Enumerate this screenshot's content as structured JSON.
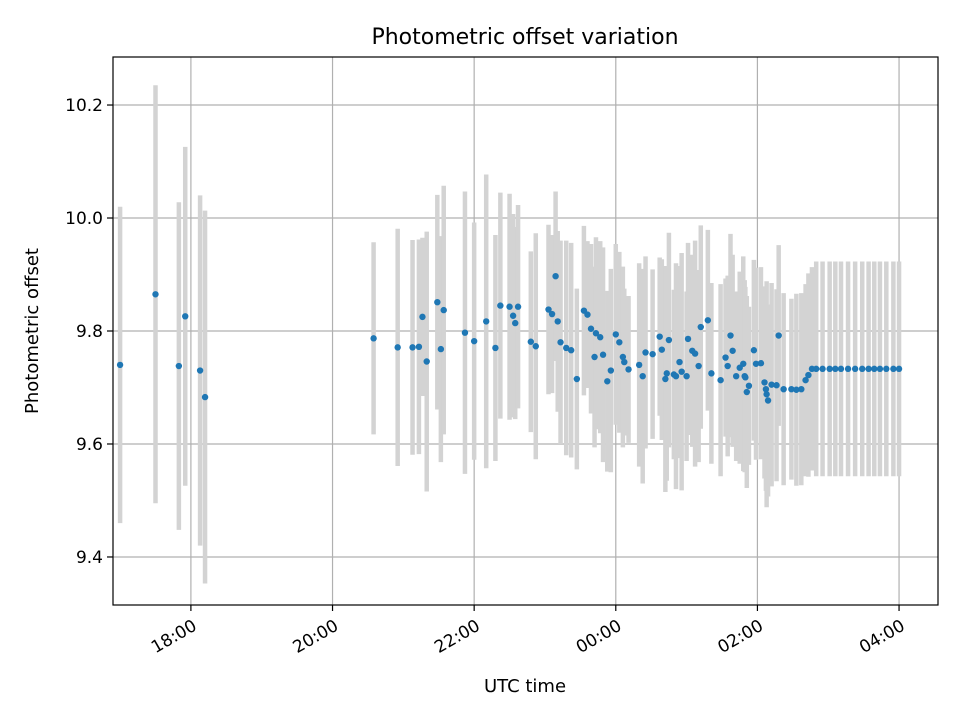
{
  "chart_data": {
    "type": "scatter",
    "title": "Photometric offset variation",
    "xlabel": "UTC time",
    "ylabel": "Photometric offset",
    "ylim": [
      9.315,
      10.285
    ],
    "xlim_hours": [
      16.9,
      28.55
    ],
    "xticks": [
      {
        "h": 18,
        "label": "18:00"
      },
      {
        "h": 20,
        "label": "20:00"
      },
      {
        "h": 22,
        "label": "22:00"
      },
      {
        "h": 24,
        "label": "00:00"
      },
      {
        "h": 26,
        "label": "02:00"
      },
      {
        "h": 28,
        "label": "04:00"
      }
    ],
    "yticks": [
      {
        "v": 9.4,
        "label": "9.4"
      },
      {
        "v": 9.6,
        "label": "9.6"
      },
      {
        "v": 9.8,
        "label": "9.8"
      },
      {
        "v": 10.0,
        "label": "10.0"
      },
      {
        "v": 10.2,
        "label": "10.2"
      }
    ],
    "grid": true,
    "series": [
      {
        "name": "offset",
        "marker_color": "#1f77b4",
        "errorbar_color": "#d3d3d3",
        "points": [
          [
            17.0,
            9.74,
            0.28
          ],
          [
            17.5,
            9.865,
            0.37
          ],
          [
            17.83,
            9.738,
            0.29
          ],
          [
            17.92,
            9.826,
            0.3
          ],
          [
            18.13,
            9.73,
            0.31
          ],
          [
            18.2,
            9.683,
            0.33
          ],
          [
            20.58,
            9.787,
            0.17
          ],
          [
            20.92,
            9.771,
            0.21
          ],
          [
            21.13,
            9.771,
            0.19
          ],
          [
            21.22,
            9.772,
            0.19
          ],
          [
            21.27,
            9.825,
            0.14
          ],
          [
            21.33,
            9.746,
            0.23
          ],
          [
            21.48,
            9.851,
            0.19
          ],
          [
            21.53,
            9.768,
            0.2
          ],
          [
            21.57,
            9.837,
            0.22
          ],
          [
            21.87,
            9.797,
            0.25
          ],
          [
            22.0,
            9.782,
            0.21
          ],
          [
            22.17,
            9.817,
            0.26
          ],
          [
            22.3,
            9.77,
            0.2
          ],
          [
            22.37,
            9.845,
            0.2
          ],
          [
            22.5,
            9.843,
            0.2
          ],
          [
            22.55,
            9.827,
            0.18
          ],
          [
            22.58,
            9.814,
            0.17
          ],
          [
            22.62,
            9.843,
            0.18
          ],
          [
            22.8,
            9.781,
            0.16
          ],
          [
            22.87,
            9.773,
            0.2
          ],
          [
            23.05,
            9.838,
            0.15
          ],
          [
            23.1,
            9.83,
            0.14
          ],
          [
            23.15,
            9.897,
            0.15
          ],
          [
            23.18,
            9.817,
            0.16
          ],
          [
            23.22,
            9.78,
            0.18
          ],
          [
            23.3,
            9.77,
            0.19
          ],
          [
            23.37,
            9.766,
            0.19
          ],
          [
            23.45,
            9.715,
            0.16
          ],
          [
            23.55,
            9.836,
            0.15
          ],
          [
            23.6,
            9.829,
            0.13
          ],
          [
            23.65,
            9.804,
            0.15
          ],
          [
            23.7,
            9.754,
            0.16
          ],
          [
            23.72,
            9.796,
            0.17
          ],
          [
            23.78,
            9.789,
            0.17
          ],
          [
            23.82,
            9.758,
            0.19
          ],
          [
            23.88,
            9.711,
            0.16
          ],
          [
            23.93,
            9.73,
            0.18
          ],
          [
            24.0,
            9.794,
            0.16
          ],
          [
            24.05,
            9.78,
            0.16
          ],
          [
            24.1,
            9.754,
            0.16
          ],
          [
            24.12,
            9.745,
            0.13
          ],
          [
            24.18,
            9.732,
            0.13
          ],
          [
            24.33,
            9.74,
            0.18
          ],
          [
            24.38,
            9.72,
            0.19
          ],
          [
            24.42,
            9.762,
            0.17
          ],
          [
            24.52,
            9.759,
            0.15
          ],
          [
            24.62,
            9.79,
            0.14
          ],
          [
            24.65,
            9.767,
            0.16
          ],
          [
            24.7,
            9.715,
            0.2
          ],
          [
            24.72,
            9.725,
            0.19
          ],
          [
            24.75,
            9.784,
            0.19
          ],
          [
            24.82,
            9.723,
            0.15
          ],
          [
            24.85,
            9.72,
            0.2
          ],
          [
            24.9,
            9.745,
            0.17
          ],
          [
            24.93,
            9.728,
            0.21
          ],
          [
            25.0,
            9.72,
            0.15
          ],
          [
            25.02,
            9.786,
            0.17
          ],
          [
            25.08,
            9.765,
            0.17
          ],
          [
            25.12,
            9.76,
            0.2
          ],
          [
            25.17,
            9.738,
            0.17
          ],
          [
            25.2,
            9.807,
            0.18
          ],
          [
            25.3,
            9.819,
            0.16
          ],
          [
            25.35,
            9.725,
            0.16
          ],
          [
            25.48,
            9.713,
            0.17
          ],
          [
            25.55,
            9.753,
            0.14
          ],
          [
            25.58,
            9.738,
            0.16
          ],
          [
            25.62,
            9.792,
            0.18
          ],
          [
            25.65,
            9.765,
            0.17
          ],
          [
            25.7,
            9.72,
            0.15
          ],
          [
            25.75,
            9.735,
            0.17
          ],
          [
            25.8,
            9.742,
            0.19
          ],
          [
            25.82,
            9.72,
            0.17
          ],
          [
            25.83,
            9.718,
            0.16
          ],
          [
            25.85,
            9.692,
            0.17
          ],
          [
            25.88,
            9.703,
            0.14
          ],
          [
            25.95,
            9.766,
            0.16
          ],
          [
            25.98,
            9.742,
            0.17
          ],
          [
            26.05,
            9.743,
            0.17
          ],
          [
            26.1,
            9.709,
            0.17
          ],
          [
            26.12,
            9.697,
            0.18
          ],
          [
            26.13,
            9.688,
            0.2
          ],
          [
            26.15,
            9.677,
            0.17
          ],
          [
            26.2,
            9.705,
            0.18
          ],
          [
            26.27,
            9.704,
            0.17
          ],
          [
            26.3,
            9.792,
            0.16
          ],
          [
            26.37,
            9.697,
            0.17
          ],
          [
            26.48,
            9.697,
            0.16
          ],
          [
            26.55,
            9.696,
            0.17
          ],
          [
            26.62,
            9.697,
            0.17
          ],
          [
            26.68,
            9.713,
            0.17
          ],
          [
            26.72,
            9.722,
            0.18
          ],
          [
            26.77,
            9.733,
            0.18
          ],
          [
            26.83,
            9.733,
            0.19
          ],
          [
            26.92,
            9.733,
            0.19
          ],
          [
            27.02,
            9.733,
            0.19
          ],
          [
            27.1,
            9.733,
            0.19
          ],
          [
            27.18,
            9.733,
            0.19
          ],
          [
            27.28,
            9.733,
            0.19
          ],
          [
            27.38,
            9.733,
            0.19
          ],
          [
            27.48,
            9.733,
            0.19
          ],
          [
            27.57,
            9.733,
            0.19
          ],
          [
            27.65,
            9.733,
            0.19
          ],
          [
            27.73,
            9.733,
            0.19
          ],
          [
            27.82,
            9.733,
            0.19
          ],
          [
            27.92,
            9.733,
            0.19
          ],
          [
            28.0,
            9.733,
            0.19
          ]
        ]
      }
    ]
  }
}
